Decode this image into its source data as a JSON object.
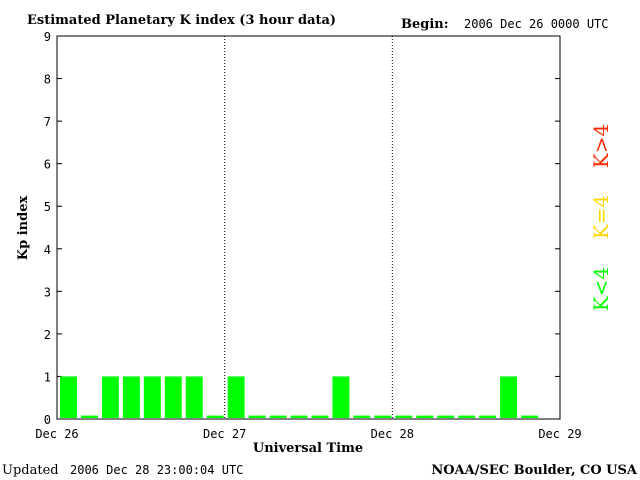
{
  "header": {
    "title": "Estimated Planetary K index (3 hour data)",
    "begin_label": "Begin:",
    "begin_value": "2006 Dec 26 0000 UTC"
  },
  "footer": {
    "updated_label": "Updated",
    "updated_value": "2006 Dec 28 23:00:04 UTC",
    "credit": "NOAA/SEC Boulder, CO USA"
  },
  "legend": [
    {
      "label": "K<4",
      "color": "#00ff00"
    },
    {
      "label": "K=4",
      "color": "#ffd700"
    },
    {
      "label": "K>4",
      "color": "#ff2a00"
    }
  ],
  "chart_data": {
    "type": "bar",
    "title": "Estimated Planetary K index (3 hour data)",
    "xlabel": "Universal Time",
    "ylabel": "Kp index",
    "ylim": [
      0,
      9
    ],
    "yticks": [
      "0",
      "1",
      "2",
      "3",
      "4",
      "5",
      "6",
      "7",
      "8",
      "9"
    ],
    "xticks": [
      "Dec 26",
      "Dec 27",
      "Dec 28",
      "Dec 29"
    ],
    "interval_hours": 3,
    "day_separators": "dotted",
    "values": [
      1,
      0,
      1,
      1,
      1,
      1,
      1,
      0,
      1,
      0,
      0,
      0,
      0,
      1,
      0,
      0,
      0,
      0,
      0,
      0,
      0,
      1,
      0
    ],
    "bar_color": "#00ff00"
  }
}
